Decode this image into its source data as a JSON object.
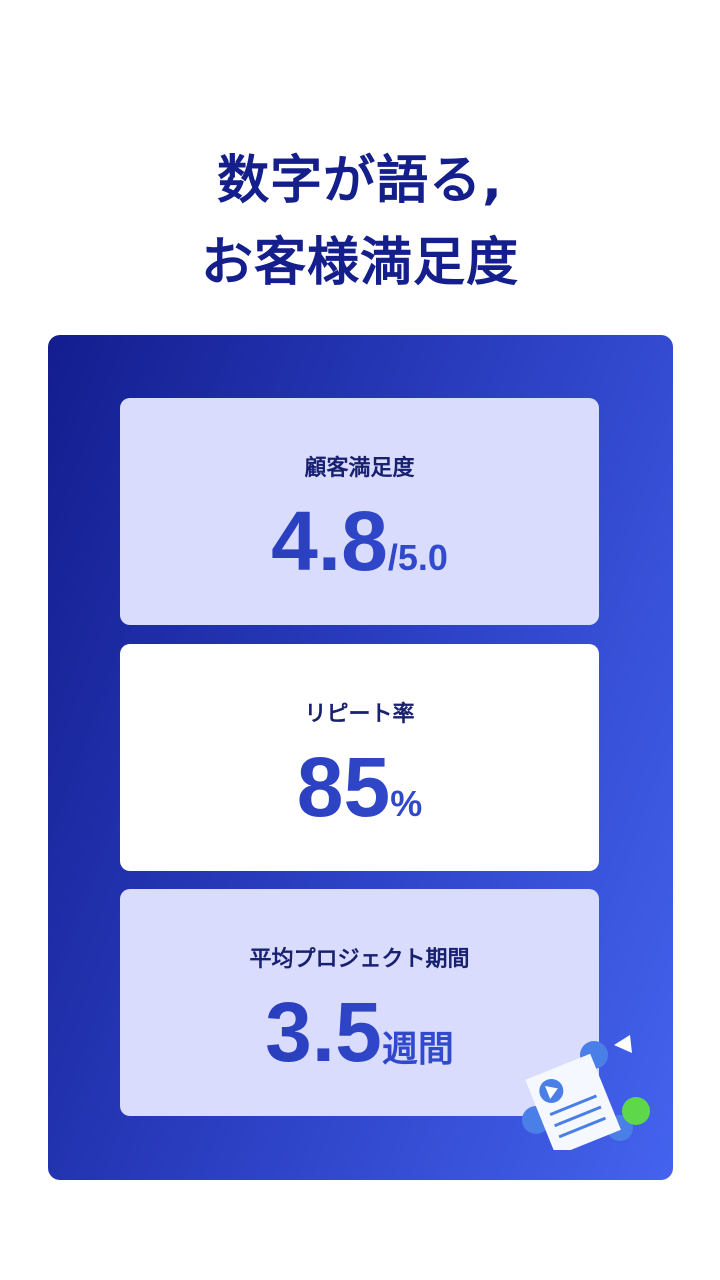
{
  "title": {
    "line1": "数字が語る,",
    "line2": "お客様満足度"
  },
  "stats": [
    {
      "label": "顧客満足度",
      "value": "4.8",
      "unit": "/5.0"
    },
    {
      "label": "リピート率",
      "value": "85",
      "unit": "%"
    },
    {
      "label": "平均プロジェクト期間",
      "value": "3.5",
      "unit": "週間"
    }
  ]
}
